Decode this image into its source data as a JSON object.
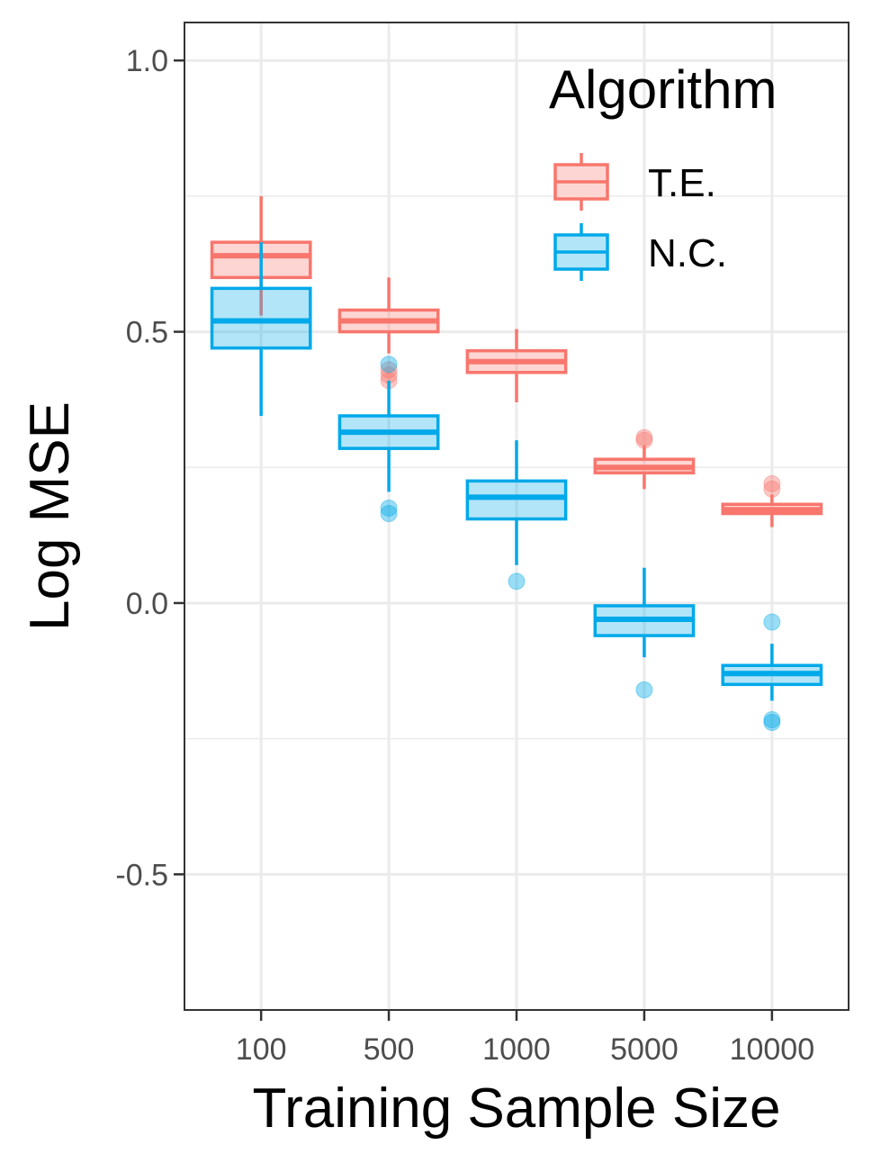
{
  "chart_data": {
    "type": "box",
    "xlabel": "Training Sample Size",
    "ylabel": "Log MSE",
    "categories": [
      "100",
      "500",
      "1000",
      "5000",
      "10000"
    ],
    "ylim": [
      -0.75,
      1.07
    ],
    "yticks": [
      -0.5,
      0.0,
      0.5,
      1.0
    ],
    "ytick_labels": [
      "-0.5",
      "0.0",
      "0.5",
      "1.0"
    ],
    "grid": true,
    "legend": {
      "title": "Algorithm",
      "position": "top-right"
    },
    "series": [
      {
        "name": "T.E.",
        "color": "#F8766D",
        "boxes": [
          {
            "category": "100",
            "q1": 0.6,
            "median": 0.64,
            "q3": 0.665,
            "whisker_low": 0.53,
            "whisker_high": 0.75,
            "outliers": []
          },
          {
            "category": "500",
            "q1": 0.5,
            "median": 0.52,
            "q3": 0.54,
            "whisker_low": 0.46,
            "whisker_high": 0.6,
            "outliers": [
              0.43,
              0.42,
              0.41
            ]
          },
          {
            "category": "1000",
            "q1": 0.425,
            "median": 0.445,
            "q3": 0.465,
            "whisker_low": 0.37,
            "whisker_high": 0.505,
            "outliers": []
          },
          {
            "category": "5000",
            "q1": 0.24,
            "median": 0.25,
            "q3": 0.265,
            "whisker_low": 0.21,
            "whisker_high": 0.29,
            "outliers": [
              0.3,
              0.305
            ]
          },
          {
            "category": "10000",
            "q1": 0.165,
            "median": 0.172,
            "q3": 0.182,
            "whisker_low": 0.14,
            "whisker_high": 0.2,
            "outliers": [
              0.22,
              0.21
            ]
          }
        ]
      },
      {
        "name": "N.C.",
        "color": "#00A9E9",
        "boxes": [
          {
            "category": "100",
            "q1": 0.47,
            "median": 0.52,
            "q3": 0.58,
            "whisker_low": 0.345,
            "whisker_high": 0.665,
            "outliers": []
          },
          {
            "category": "500",
            "q1": 0.285,
            "median": 0.315,
            "q3": 0.345,
            "whisker_low": 0.205,
            "whisker_high": 0.41,
            "outliers": [
              0.44,
              0.175,
              0.165
            ]
          },
          {
            "category": "1000",
            "q1": 0.155,
            "median": 0.195,
            "q3": 0.225,
            "whisker_low": 0.07,
            "whisker_high": 0.3,
            "outliers": [
              0.04
            ]
          },
          {
            "category": "5000",
            "q1": -0.06,
            "median": -0.03,
            "q3": -0.005,
            "whisker_low": -0.1,
            "whisker_high": 0.065,
            "outliers": [
              -0.16
            ]
          },
          {
            "category": "10000",
            "q1": -0.15,
            "median": -0.13,
            "q3": -0.115,
            "whisker_low": -0.18,
            "whisker_high": -0.075,
            "outliers": [
              -0.035,
              -0.215,
              -0.22
            ]
          }
        ]
      }
    ]
  }
}
